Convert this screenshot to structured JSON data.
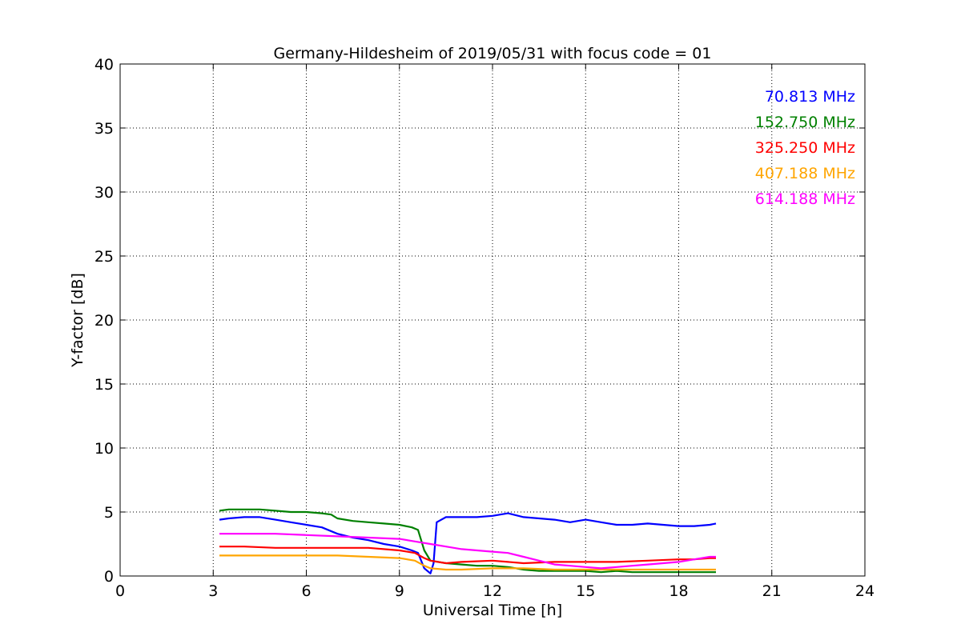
{
  "chart_data": {
    "type": "line",
    "title": "Germany-Hildesheim of 2019/05/31 with focus code = 01",
    "xlabel": "Universal Time [h]",
    "ylabel": "Y-factor [dB]",
    "xlim": [
      0,
      24
    ],
    "ylim": [
      0,
      40
    ],
    "xticks": [
      0,
      3,
      6,
      9,
      12,
      15,
      18,
      21,
      24
    ],
    "yticks": [
      0,
      5,
      10,
      15,
      20,
      25,
      30,
      35,
      40
    ],
    "grid": true,
    "legend_position": "top-right",
    "series": [
      {
        "name": "70.813 MHz",
        "color": "#0000ff",
        "x": [
          3.2,
          3.5,
          4.0,
          4.5,
          5.0,
          5.5,
          6.0,
          6.5,
          7.0,
          7.5,
          8.0,
          8.5,
          9.0,
          9.4,
          9.6,
          9.8,
          10.0,
          10.1,
          10.2,
          10.5,
          11.0,
          11.5,
          12.0,
          12.5,
          13.0,
          13.5,
          14.0,
          14.5,
          15.0,
          15.5,
          16.0,
          16.5,
          17.0,
          17.5,
          18.0,
          18.5,
          19.0,
          19.2
        ],
        "y": [
          4.4,
          4.5,
          4.6,
          4.6,
          4.4,
          4.2,
          4.0,
          3.8,
          3.3,
          3.0,
          2.8,
          2.5,
          2.3,
          2.0,
          1.8,
          0.6,
          0.2,
          1.0,
          4.2,
          4.6,
          4.6,
          4.6,
          4.7,
          4.9,
          4.6,
          4.5,
          4.4,
          4.2,
          4.4,
          4.2,
          4.0,
          4.0,
          4.1,
          4.0,
          3.9,
          3.9,
          4.0,
          4.1
        ]
      },
      {
        "name": "152.750 MHz",
        "color": "#008000",
        "x": [
          3.2,
          3.5,
          4.0,
          4.5,
          5.0,
          5.5,
          6.0,
          6.5,
          6.8,
          7.0,
          7.5,
          8.0,
          8.5,
          9.0,
          9.4,
          9.6,
          9.8,
          10.0,
          10.5,
          11.0,
          11.5,
          12.0,
          12.5,
          13.0,
          13.5,
          14.0,
          14.5,
          15.0,
          15.5,
          16.0,
          16.5,
          17.0,
          17.5,
          18.0,
          18.5,
          19.0,
          19.2
        ],
        "y": [
          5.1,
          5.2,
          5.2,
          5.2,
          5.1,
          5.0,
          5.0,
          4.9,
          4.8,
          4.5,
          4.3,
          4.2,
          4.1,
          4.0,
          3.8,
          3.6,
          2.0,
          1.2,
          1.0,
          0.9,
          0.8,
          0.8,
          0.7,
          0.5,
          0.4,
          0.4,
          0.4,
          0.4,
          0.3,
          0.4,
          0.3,
          0.3,
          0.3,
          0.3,
          0.3,
          0.3,
          0.3
        ]
      },
      {
        "name": "325.250 MHz",
        "color": "#ff0000",
        "x": [
          3.2,
          4.0,
          5.0,
          6.0,
          7.0,
          8.0,
          9.0,
          9.5,
          9.8,
          10.0,
          10.5,
          11.0,
          12.0,
          13.0,
          14.0,
          15.0,
          16.0,
          17.0,
          18.0,
          18.5,
          19.0,
          19.2
        ],
        "y": [
          2.3,
          2.3,
          2.2,
          2.2,
          2.2,
          2.2,
          2.0,
          1.8,
          1.4,
          1.2,
          1.0,
          1.1,
          1.2,
          1.0,
          1.1,
          1.1,
          1.1,
          1.2,
          1.3,
          1.3,
          1.4,
          1.4
        ]
      },
      {
        "name": "407.188 MHz",
        "color": "#ffa500",
        "x": [
          3.2,
          4.0,
          5.0,
          6.0,
          7.0,
          8.0,
          9.0,
          9.5,
          9.8,
          10.0,
          10.5,
          11.0,
          12.0,
          13.0,
          14.0,
          15.0,
          16.0,
          17.0,
          18.0,
          19.0,
          19.2
        ],
        "y": [
          1.6,
          1.6,
          1.6,
          1.6,
          1.6,
          1.5,
          1.4,
          1.2,
          0.8,
          0.6,
          0.5,
          0.5,
          0.6,
          0.6,
          0.5,
          0.5,
          0.5,
          0.5,
          0.5,
          0.5,
          0.5
        ]
      },
      {
        "name": "614.188 MHz",
        "color": "#ff00ff",
        "x": [
          3.2,
          4.0,
          5.0,
          6.0,
          7.0,
          8.0,
          9.0,
          9.5,
          10.0,
          10.5,
          11.0,
          11.5,
          12.0,
          12.5,
          13.0,
          13.5,
          14.0,
          14.5,
          15.0,
          15.5,
          16.0,
          16.5,
          17.0,
          17.5,
          18.0,
          18.5,
          19.0,
          19.2
        ],
        "y": [
          3.3,
          3.3,
          3.3,
          3.2,
          3.1,
          3.0,
          2.9,
          2.7,
          2.5,
          2.3,
          2.1,
          2.0,
          1.9,
          1.8,
          1.5,
          1.2,
          0.9,
          0.8,
          0.7,
          0.6,
          0.7,
          0.8,
          0.9,
          1.0,
          1.1,
          1.3,
          1.5,
          1.5
        ]
      }
    ]
  }
}
